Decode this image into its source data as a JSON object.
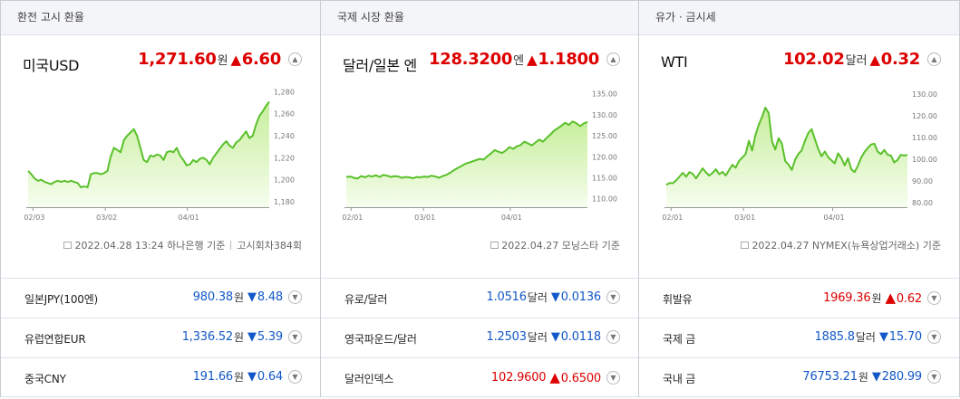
{
  "panels": [
    {
      "header": "환전 고시 환율",
      "main": {
        "name": "미국USD",
        "value": "1,271.60",
        "unit": "원",
        "change_symbol": "▲",
        "change": "6.60",
        "direction": "up"
      },
      "source": {
        "text": "2022.04.28 13:24 하나은행 기준",
        "extra": "고시회차384회"
      },
      "rows": [
        {
          "name": "일본JPY(100엔)",
          "value": "980.38",
          "unit": "원",
          "change_symbol": "▼",
          "change": "8.48",
          "direction": "down"
        },
        {
          "name": "유럽연합EUR",
          "value": "1,336.52",
          "unit": "원",
          "change_symbol": "▼",
          "change": "5.39",
          "direction": "down"
        },
        {
          "name": "중국CNY",
          "value": "191.66",
          "unit": "원",
          "change_symbol": "▼",
          "change": "0.64",
          "direction": "down"
        }
      ]
    },
    {
      "header": "국제 시장 환율",
      "main": {
        "name": "달러/일본 엔",
        "value": "128.3200",
        "unit": "엔",
        "change_symbol": "▲",
        "change": "1.1800",
        "direction": "up"
      },
      "source": {
        "text": "2022.04.27 모닝스타 기준"
      },
      "rows": [
        {
          "name": "유로/달러",
          "value": "1.0516",
          "unit": "달러",
          "change_symbol": "▼",
          "change": "0.0136",
          "direction": "down"
        },
        {
          "name": "영국파운드/달러",
          "value": "1.2503",
          "unit": "달러",
          "change_symbol": "▼",
          "change": "0.0118",
          "direction": "down"
        },
        {
          "name": "달러인덱스",
          "value": "102.9600",
          "unit": "",
          "change_symbol": "▲",
          "change": "0.6500",
          "direction": "up"
        }
      ]
    },
    {
      "header": "유가 · 금시세",
      "main": {
        "name": "WTI",
        "value": "102.02",
        "unit": "달러",
        "change_symbol": "▲",
        "change": "0.32",
        "direction": "up"
      },
      "source": {
        "text": "2022.04.27 NYMEX(뉴욕상업거래소) 기준"
      },
      "rows": [
        {
          "name": "휘발유",
          "value": "1969.36",
          "unit": "원",
          "change_symbol": "▲",
          "change": "0.62",
          "direction": "up"
        },
        {
          "name": "국제 금",
          "value": "1885.8",
          "unit": "달러",
          "change_symbol": "▼",
          "change": "15.70",
          "direction": "down"
        },
        {
          "name": "국내 금",
          "value": "76753.21",
          "unit": "원",
          "change_symbol": "▼",
          "change": "280.99",
          "direction": "down"
        }
      ]
    }
  ],
  "colors": {
    "up": "#dd0000",
    "down": "#1258c8",
    "line": "#5ac02a",
    "fill_top": "#c7ee9c",
    "fill_bottom": "#f6fdee"
  },
  "chart_data": [
    {
      "type": "area",
      "x_ticks": [
        "02/03",
        "03/02",
        "04/01"
      ],
      "y_ticks": [
        "1,180",
        "1,200",
        "1,220",
        "1,240",
        "1,260",
        "1,280"
      ],
      "ylim": [
        1175,
        1282
      ],
      "series": [
        {
          "values": [
            1208,
            1205,
            1201,
            1199,
            1200,
            1198,
            1197,
            1196,
            1198,
            1199,
            1198,
            1199,
            1198,
            1199,
            1198,
            1197,
            1193,
            1194,
            1193,
            1205,
            1206,
            1206,
            1205,
            1206,
            1208,
            1221,
            1229,
            1227,
            1225,
            1236,
            1240,
            1243,
            1246,
            1240,
            1229,
            1218,
            1216,
            1222,
            1221,
            1223,
            1222,
            1218,
            1225,
            1226,
            1225,
            1229,
            1222,
            1218,
            1213,
            1214,
            1218,
            1216,
            1219,
            1220,
            1218,
            1214,
            1220,
            1224,
            1228,
            1232,
            1235,
            1231,
            1229,
            1234,
            1236,
            1240,
            1244,
            1238,
            1240,
            1250,
            1258,
            1262,
            1267,
            1271
          ]
        }
      ]
    },
    {
      "type": "area",
      "x_ticks": [
        "02/01",
        "03/01",
        "04/01"
      ],
      "y_ticks": [
        "110.00",
        "115.00",
        "120.00",
        "125.00",
        "130.00",
        "135.00"
      ],
      "ylim": [
        108,
        136
      ],
      "series": [
        {
          "values": [
            115.2,
            115.3,
            115.0,
            114.8,
            115.4,
            115.1,
            115.5,
            115.3,
            115.6,
            115.2,
            115.7,
            115.5,
            115.2,
            115.4,
            115.3,
            115.0,
            115.2,
            115.1,
            114.9,
            115.2,
            115.1,
            115.3,
            115.2,
            115.5,
            115.3,
            115.0,
            115.4,
            115.7,
            116.2,
            116.8,
            117.3,
            117.8,
            118.3,
            118.6,
            118.9,
            119.2,
            119.5,
            119.3,
            120.1,
            120.8,
            121.6,
            121.2,
            120.9,
            121.5,
            122.3,
            121.9,
            122.5,
            122.8,
            123.6,
            123.2,
            122.7,
            123.4,
            124.1,
            123.6,
            124.5,
            125.3,
            126.2,
            126.8,
            127.4,
            128.1,
            127.6,
            128.4,
            128.0,
            127.3,
            127.9,
            128.3
          ]
        }
      ]
    },
    {
      "type": "area",
      "x_ticks": [
        "02/01",
        "03/01",
        "04/01"
      ],
      "y_ticks": [
        "80.00",
        "90.00",
        "100.00",
        "110.00",
        "120.00",
        "130.00"
      ],
      "ylim": [
        78,
        132
      ],
      "series": [
        {
          "values": [
            88.2,
            89.1,
            89.0,
            90.3,
            92.1,
            93.8,
            92.0,
            94.1,
            93.3,
            91.2,
            93.5,
            95.8,
            94.0,
            92.5,
            93.7,
            95.4,
            93.1,
            94.2,
            92.6,
            95.0,
            97.5,
            96.1,
            99.2,
            100.8,
            102.4,
            108.5,
            104.0,
            111.2,
            115.8,
            119.5,
            123.7,
            121.2,
            108.3,
            104.5,
            109.7,
            107.2,
            99.1,
            97.6,
            95.1,
            99.8,
            102.5,
            104.1,
            108.5,
            112.1,
            113.8,
            109.2,
            104.7,
            101.4,
            103.6,
            101.0,
            99.5,
            98.1,
            102.7,
            100.6,
            97.2,
            100.5,
            95.4,
            94.1,
            97.0,
            100.8,
            103.3,
            105.2,
            106.8,
            107.1,
            103.5,
            102.4,
            104.3,
            102.1,
            101.7,
            98.5,
            99.7,
            102.0,
            101.7,
            102.0
          ]
        }
      ]
    }
  ]
}
